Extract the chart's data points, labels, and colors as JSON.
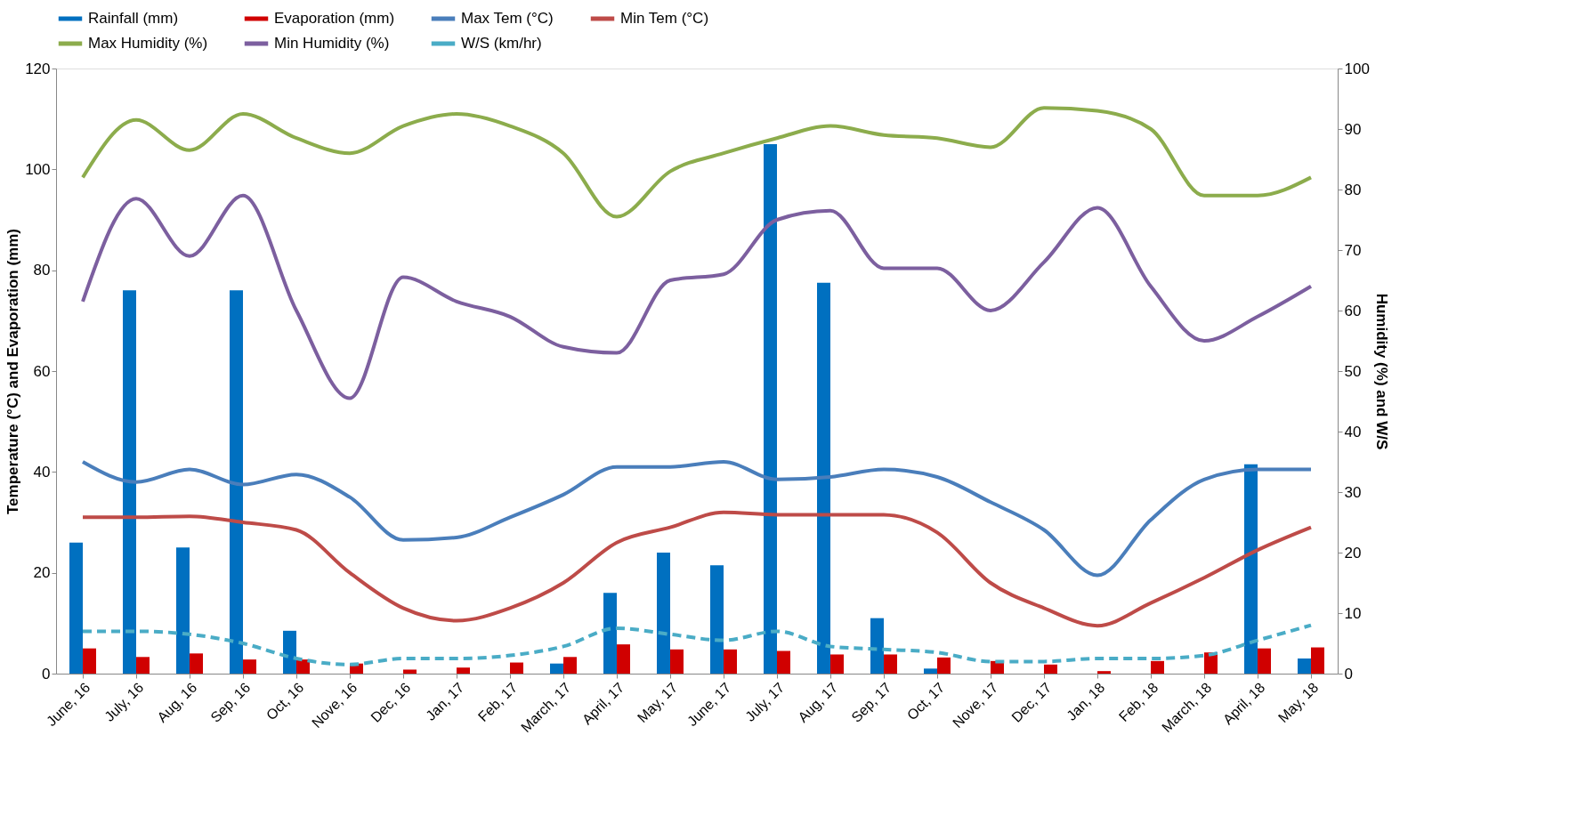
{
  "chart_data": {
    "type": "bar",
    "categories": [
      "June, 16",
      "July, 16",
      "Aug, 16",
      "Sep, 16",
      "Oct, 16",
      "Nove, 16",
      "Dec, 16",
      "Jan, 17",
      "Feb, 17",
      "March, 17",
      "April, 17",
      "May, 17",
      "June, 17",
      "July, 17",
      "Aug, 17",
      "Sep, 17",
      "Oct, 17",
      "Nove, 17",
      "Dec, 17",
      "Jan, 18",
      "Feb, 18",
      "March, 18",
      "April, 18",
      "May, 18"
    ],
    "ylabel": "Temperature (°C) and Evaporation (mm)",
    "y2label": "Humidity (%) and W/S",
    "ylim": [
      0,
      120
    ],
    "yticks": [
      0,
      20,
      40,
      60,
      80,
      100,
      120
    ],
    "y2lim": [
      0,
      100
    ],
    "y2ticks": [
      0,
      10,
      20,
      30,
      40,
      50,
      60,
      70,
      80,
      90,
      100
    ],
    "grid": false,
    "legend": "top",
    "marker": "none",
    "series": [
      {
        "name": "Rainfall (mm)",
        "color": "#0070c0",
        "values": [
          26,
          76,
          25,
          76,
          8.5,
          0,
          0,
          0,
          0,
          2,
          16,
          24,
          21.5,
          105,
          77.5,
          11,
          1,
          0,
          0,
          0,
          0,
          0,
          41.5,
          3
        ]
      },
      {
        "name": "Evaporation (mm)",
        "color": "#d00000",
        "values": [
          5,
          3.3,
          4,
          2.8,
          2.8,
          2,
          0.8,
          1.2,
          2.2,
          3.3,
          5.8,
          4.8,
          4.8,
          4.5,
          3.8,
          3.8,
          3.2,
          2.5,
          1.8,
          0.5,
          2.5,
          4.2,
          5,
          5.2
        ]
      },
      {
        "name": "Max Tem (°C)",
        "type": "line",
        "color": "#4a7ebb",
        "line_style": "solid",
        "values": [
          42,
          38,
          40.5,
          37.5,
          39.5,
          35,
          26.5,
          27,
          31,
          35.5,
          41,
          41,
          42,
          38.5,
          39,
          40.5,
          39,
          34,
          28.5,
          19.5,
          30.5,
          38.5,
          40.5,
          40.5
        ]
      },
      {
        "name": "Min Tem (°C)",
        "type": "line",
        "color": "#be4b48",
        "line_style": "solid",
        "values": [
          31,
          31,
          31.2,
          30,
          28.5,
          20,
          13,
          10.5,
          13,
          18,
          26,
          29,
          32,
          31.5,
          31.5,
          31.5,
          28,
          18,
          13,
          9.5,
          14,
          19,
          24.5,
          29
        ]
      },
      {
        "name": "Max Humidity (%)",
        "type": "line",
        "axis": "y2",
        "color": "#8cac4c",
        "line_style": "solid",
        "values": [
          82,
          91.5,
          86.5,
          92.5,
          88.5,
          86,
          90.5,
          92.5,
          90.5,
          86,
          75.5,
          83,
          86,
          88.5,
          90.5,
          89,
          88.5,
          87,
          93.5,
          93,
          90,
          79,
          79,
          82
        ]
      },
      {
        "name": "Min Humidity (%)",
        "type": "line",
        "axis": "y2",
        "color": "#7c5f9f",
        "line_style": "solid",
        "values": [
          61.5,
          78.5,
          69,
          79,
          60,
          45.5,
          65.5,
          61.5,
          59,
          54,
          53,
          65,
          66,
          75,
          76.5,
          67,
          67,
          60,
          68,
          77,
          64,
          55,
          59,
          64
        ]
      },
      {
        "name": "W/S (km/hr)",
        "type": "line",
        "axis": "y2",
        "color": "#4aacc6",
        "line_style": "dashed",
        "values": [
          7,
          7,
          6.5,
          5,
          2.5,
          1.5,
          2.5,
          2.5,
          3,
          4.5,
          7.5,
          6.5,
          5.5,
          7,
          4.5,
          4,
          3.5,
          2,
          2,
          2.5,
          2.5,
          3,
          5.5,
          8
        ]
      }
    ]
  }
}
